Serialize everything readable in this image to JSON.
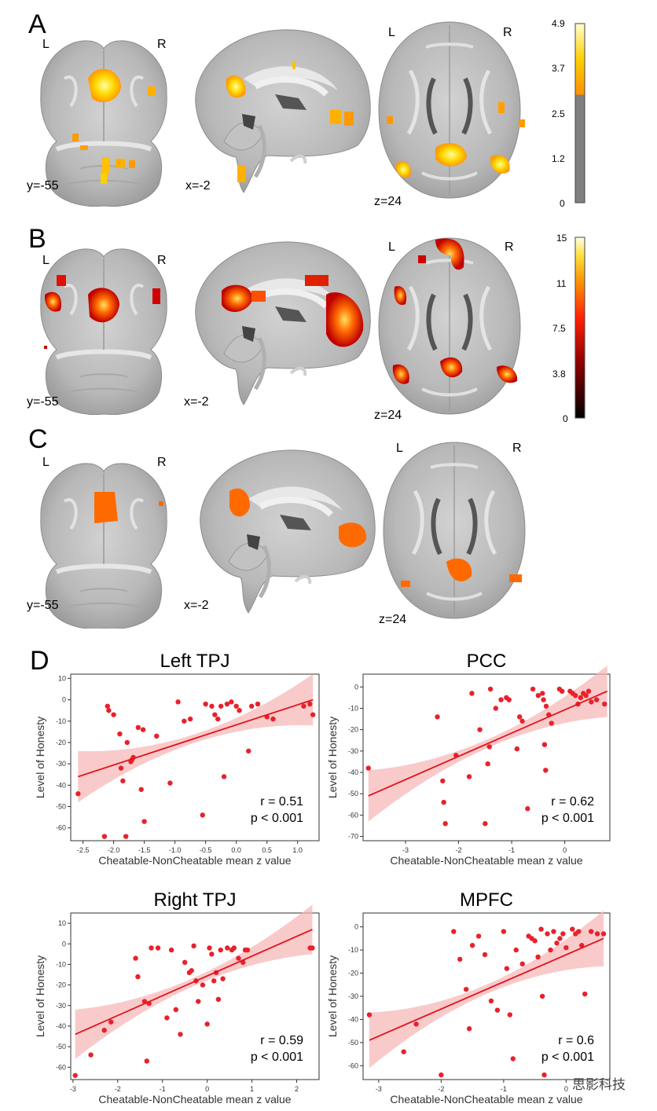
{
  "panels": [
    {
      "letter": "A",
      "coords": [
        "y=-55",
        "x=-2",
        "z=24"
      ],
      "colorbar": {
        "ticks": [
          "4.9",
          "3.7",
          "2.5",
          "1.2",
          "0"
        ],
        "scheme": "autumn-threshold"
      }
    },
    {
      "letter": "B",
      "coords": [
        "y=-55",
        "x=-2",
        "z=24"
      ],
      "colorbar": {
        "ticks": [
          "15",
          "11",
          "7.5",
          "3.8",
          "0"
        ],
        "scheme": "hot"
      }
    },
    {
      "letter": "C",
      "coords": [
        "y=-55",
        "x=-2",
        "z=24"
      ]
    }
  ],
  "orientation": {
    "left": "L",
    "right": "R"
  },
  "panel_d_letter": "D",
  "chart_data": [
    {
      "type": "scatter",
      "title": "Left TPJ",
      "xlabel": "Cheatable-NonCheatable mean z value",
      "ylabel": "Level of Honesty",
      "xlim": [
        -2.7,
        1.35
      ],
      "ylim": [
        -66,
        12
      ],
      "xticks": [
        -2.5,
        -2.0,
        -1.5,
        -1.0,
        -0.5,
        0.0,
        0.5,
        1.0
      ],
      "xtick_labels": [
        "-2.5",
        "-2.0",
        "-1.5",
        "-1.0",
        "-0.5",
        "0.0",
        "0.5",
        "1.0"
      ],
      "yticks": [
        10,
        0,
        -10,
        -20,
        -30,
        -40,
        -50,
        -60
      ],
      "ytick_labels": [
        "10",
        "0",
        "-10",
        "-20",
        "-30",
        "-40",
        "-50",
        "-60"
      ],
      "r": "r = 0.51",
      "p": "p < 0.001",
      "fit": {
        "x": [
          -2.58,
          1.25
        ],
        "y": [
          -36,
          0
        ]
      },
      "points": [
        [
          -2.58,
          -44
        ],
        [
          -2.15,
          -64
        ],
        [
          -2.1,
          -3
        ],
        [
          -2.08,
          -5
        ],
        [
          -2.0,
          -7
        ],
        [
          -1.9,
          -16
        ],
        [
          -1.88,
          -32
        ],
        [
          -1.85,
          -38
        ],
        [
          -1.8,
          -64
        ],
        [
          -1.78,
          -20
        ],
        [
          -1.72,
          -29
        ],
        [
          -1.7,
          -28
        ],
        [
          -1.68,
          -27
        ],
        [
          -1.6,
          -13
        ],
        [
          -1.55,
          -42
        ],
        [
          -1.52,
          -14
        ],
        [
          -1.5,
          -57
        ],
        [
          -1.3,
          -17
        ],
        [
          -1.08,
          -39
        ],
        [
          -0.95,
          -1
        ],
        [
          -0.85,
          -10
        ],
        [
          -0.75,
          -9
        ],
        [
          -0.55,
          -54
        ],
        [
          -0.5,
          -2
        ],
        [
          -0.4,
          -3
        ],
        [
          -0.35,
          -7
        ],
        [
          -0.3,
          -9
        ],
        [
          -0.25,
          -3
        ],
        [
          -0.2,
          -36
        ],
        [
          -0.15,
          -2
        ],
        [
          -0.08,
          -1
        ],
        [
          0.0,
          -3
        ],
        [
          0.05,
          -5
        ],
        [
          0.2,
          -24
        ],
        [
          0.25,
          -3
        ],
        [
          0.35,
          -2
        ],
        [
          0.5,
          -8
        ],
        [
          0.6,
          -9
        ],
        [
          1.1,
          -3
        ],
        [
          1.2,
          -2
        ],
        [
          1.25,
          -7
        ]
      ]
    },
    {
      "type": "scatter",
      "title": "PCC",
      "xlabel": "Cheatable-NonCheatable mean z value",
      "ylabel": "Level of Honesty",
      "xlim": [
        -3.8,
        0.85
      ],
      "ylim": [
        -72,
        6
      ],
      "xticks": [
        -3,
        -2,
        -1,
        0
      ],
      "xtick_labels": [
        "-3",
        "-2",
        "-1",
        "0"
      ],
      "yticks": [
        0,
        -10,
        -20,
        -30,
        -40,
        -50,
        -60,
        -70
      ],
      "ytick_labels": [
        "0",
        "-10",
        "-20",
        "-30",
        "-40",
        "-50",
        "-60",
        "-70"
      ],
      "r": "r = 0.62",
      "p": "p < 0.001",
      "fit": {
        "x": [
          -3.7,
          0.8
        ],
        "y": [
          -51,
          -2
        ]
      },
      "points": [
        [
          -3.7,
          -38
        ],
        [
          -2.4,
          -14
        ],
        [
          -2.3,
          -44
        ],
        [
          -2.28,
          -54
        ],
        [
          -2.25,
          -64
        ],
        [
          -2.05,
          -32
        ],
        [
          -1.8,
          -42
        ],
        [
          -1.75,
          -3
        ],
        [
          -1.6,
          -20
        ],
        [
          -1.5,
          -64
        ],
        [
          -1.45,
          -36
        ],
        [
          -1.42,
          -28
        ],
        [
          -1.4,
          -1
        ],
        [
          -1.3,
          -10
        ],
        [
          -1.2,
          -6
        ],
        [
          -1.1,
          -5
        ],
        [
          -1.05,
          -6
        ],
        [
          -0.9,
          -29
        ],
        [
          -0.85,
          -14
        ],
        [
          -0.8,
          -16
        ],
        [
          -0.7,
          -57
        ],
        [
          -0.6,
          -1
        ],
        [
          -0.5,
          -4
        ],
        [
          -0.42,
          -3
        ],
        [
          -0.4,
          -6
        ],
        [
          -0.38,
          -27
        ],
        [
          -0.36,
          -39
        ],
        [
          -0.35,
          -9
        ],
        [
          -0.3,
          -13
        ],
        [
          -0.25,
          -17
        ],
        [
          -0.1,
          -1
        ],
        [
          -0.05,
          -2
        ],
        [
          0.1,
          -2
        ],
        [
          0.15,
          -3
        ],
        [
          0.2,
          -4
        ],
        [
          0.25,
          -8
        ],
        [
          0.3,
          -5
        ],
        [
          0.35,
          -3
        ],
        [
          0.4,
          -4
        ],
        [
          0.45,
          -2
        ],
        [
          0.5,
          -7
        ],
        [
          0.6,
          -6
        ],
        [
          0.75,
          -8
        ]
      ]
    },
    {
      "type": "scatter",
      "title": "Right TPJ",
      "xlabel": "Cheatable-NonCheatable mean z value",
      "ylabel": "Level of Honesty",
      "xlim": [
        -3.05,
        2.5
      ],
      "ylim": [
        -66,
        15
      ],
      "xticks": [
        -3,
        -2,
        -1,
        0,
        1,
        2
      ],
      "xtick_labels": [
        "-3",
        "-2",
        "-1",
        "0",
        "1",
        "2"
      ],
      "yticks": [
        10,
        0,
        -10,
        -20,
        -30,
        -40,
        -50,
        -60
      ],
      "ytick_labels": [
        "10",
        "0",
        "-10",
        "-20",
        "-30",
        "-40",
        "-50",
        "-60"
      ],
      "r": "r = 0.59",
      "p": "p < 0.001",
      "fit": {
        "x": [
          -2.95,
          2.35
        ],
        "y": [
          -44,
          7
        ]
      },
      "points": [
        [
          -2.95,
          -64
        ],
        [
          -2.6,
          -54
        ],
        [
          -2.3,
          -42
        ],
        [
          -2.15,
          -38
        ],
        [
          -1.6,
          -7
        ],
        [
          -1.55,
          -16
        ],
        [
          -1.4,
          -28
        ],
        [
          -1.35,
          -57
        ],
        [
          -1.3,
          -29
        ],
        [
          -1.25,
          -2
        ],
        [
          -1.1,
          -2
        ],
        [
          -0.9,
          -36
        ],
        [
          -0.8,
          -3
        ],
        [
          -0.7,
          -32
        ],
        [
          -0.6,
          -44
        ],
        [
          -0.5,
          -9
        ],
        [
          -0.4,
          -14
        ],
        [
          -0.35,
          -13
        ],
        [
          -0.3,
          -1
        ],
        [
          -0.25,
          -18
        ],
        [
          -0.2,
          -28
        ],
        [
          -0.1,
          -20
        ],
        [
          0.0,
          -39
        ],
        [
          0.05,
          -2
        ],
        [
          0.1,
          -5
        ],
        [
          0.15,
          -18
        ],
        [
          0.2,
          -14
        ],
        [
          0.25,
          -27
        ],
        [
          0.3,
          -3
        ],
        [
          0.35,
          -17
        ],
        [
          0.45,
          -2
        ],
        [
          0.55,
          -3
        ],
        [
          0.6,
          -2
        ],
        [
          0.7,
          -7
        ],
        [
          0.8,
          -9
        ],
        [
          0.85,
          -3
        ],
        [
          0.9,
          -3
        ],
        [
          2.3,
          -2
        ],
        [
          2.35,
          -2
        ]
      ]
    },
    {
      "type": "scatter",
      "title": "MPFC",
      "xlabel": "Cheatable-NonCheatable mean z value",
      "ylabel": "Level of Honesty",
      "xlim": [
        -3.25,
        0.7
      ],
      "ylim": [
        -66,
        6
      ],
      "xticks": [
        -3,
        -2,
        -1,
        0
      ],
      "xtick_labels": [
        "-3",
        "-2",
        "-1",
        "0"
      ],
      "yticks": [
        0,
        -10,
        -20,
        -30,
        -40,
        -50,
        -60
      ],
      "ytick_labels": [
        "0",
        "-10",
        "-20",
        "-30",
        "-40",
        "-50",
        "-60"
      ],
      "r": "r = 0.6",
      "p": "p < 0.001",
      "fit": {
        "x": [
          -3.15,
          0.6
        ],
        "y": [
          -49,
          -5
        ]
      },
      "points": [
        [
          -3.15,
          -38
        ],
        [
          -2.6,
          -54
        ],
        [
          -2.4,
          -42
        ],
        [
          -2.0,
          -64
        ],
        [
          -1.8,
          -2
        ],
        [
          -1.7,
          -14
        ],
        [
          -1.6,
          -27
        ],
        [
          -1.55,
          -44
        ],
        [
          -1.5,
          -8
        ],
        [
          -1.4,
          -4
        ],
        [
          -1.3,
          -12
        ],
        [
          -1.2,
          -32
        ],
        [
          -1.1,
          -36
        ],
        [
          -1.0,
          -2
        ],
        [
          -0.95,
          -18
        ],
        [
          -0.9,
          -38
        ],
        [
          -0.85,
          -57
        ],
        [
          -0.8,
          -10
        ],
        [
          -0.7,
          -16
        ],
        [
          -0.6,
          -4
        ],
        [
          -0.55,
          -5
        ],
        [
          -0.5,
          -6
        ],
        [
          -0.45,
          -13
        ],
        [
          -0.4,
          -1
        ],
        [
          -0.38,
          -30
        ],
        [
          -0.35,
          -64
        ],
        [
          -0.3,
          -3
        ],
        [
          -0.25,
          -10
        ],
        [
          -0.2,
          -2
        ],
        [
          -0.15,
          -7
        ],
        [
          -0.1,
          -5
        ],
        [
          -0.05,
          -3
        ],
        [
          0.0,
          -9
        ],
        [
          0.1,
          -1
        ],
        [
          0.15,
          -3
        ],
        [
          0.2,
          -2
        ],
        [
          0.25,
          -8
        ],
        [
          0.3,
          -29
        ],
        [
          0.4,
          -2
        ],
        [
          0.5,
          -3
        ],
        [
          0.6,
          -3
        ]
      ]
    }
  ],
  "watermark": "思影科技"
}
